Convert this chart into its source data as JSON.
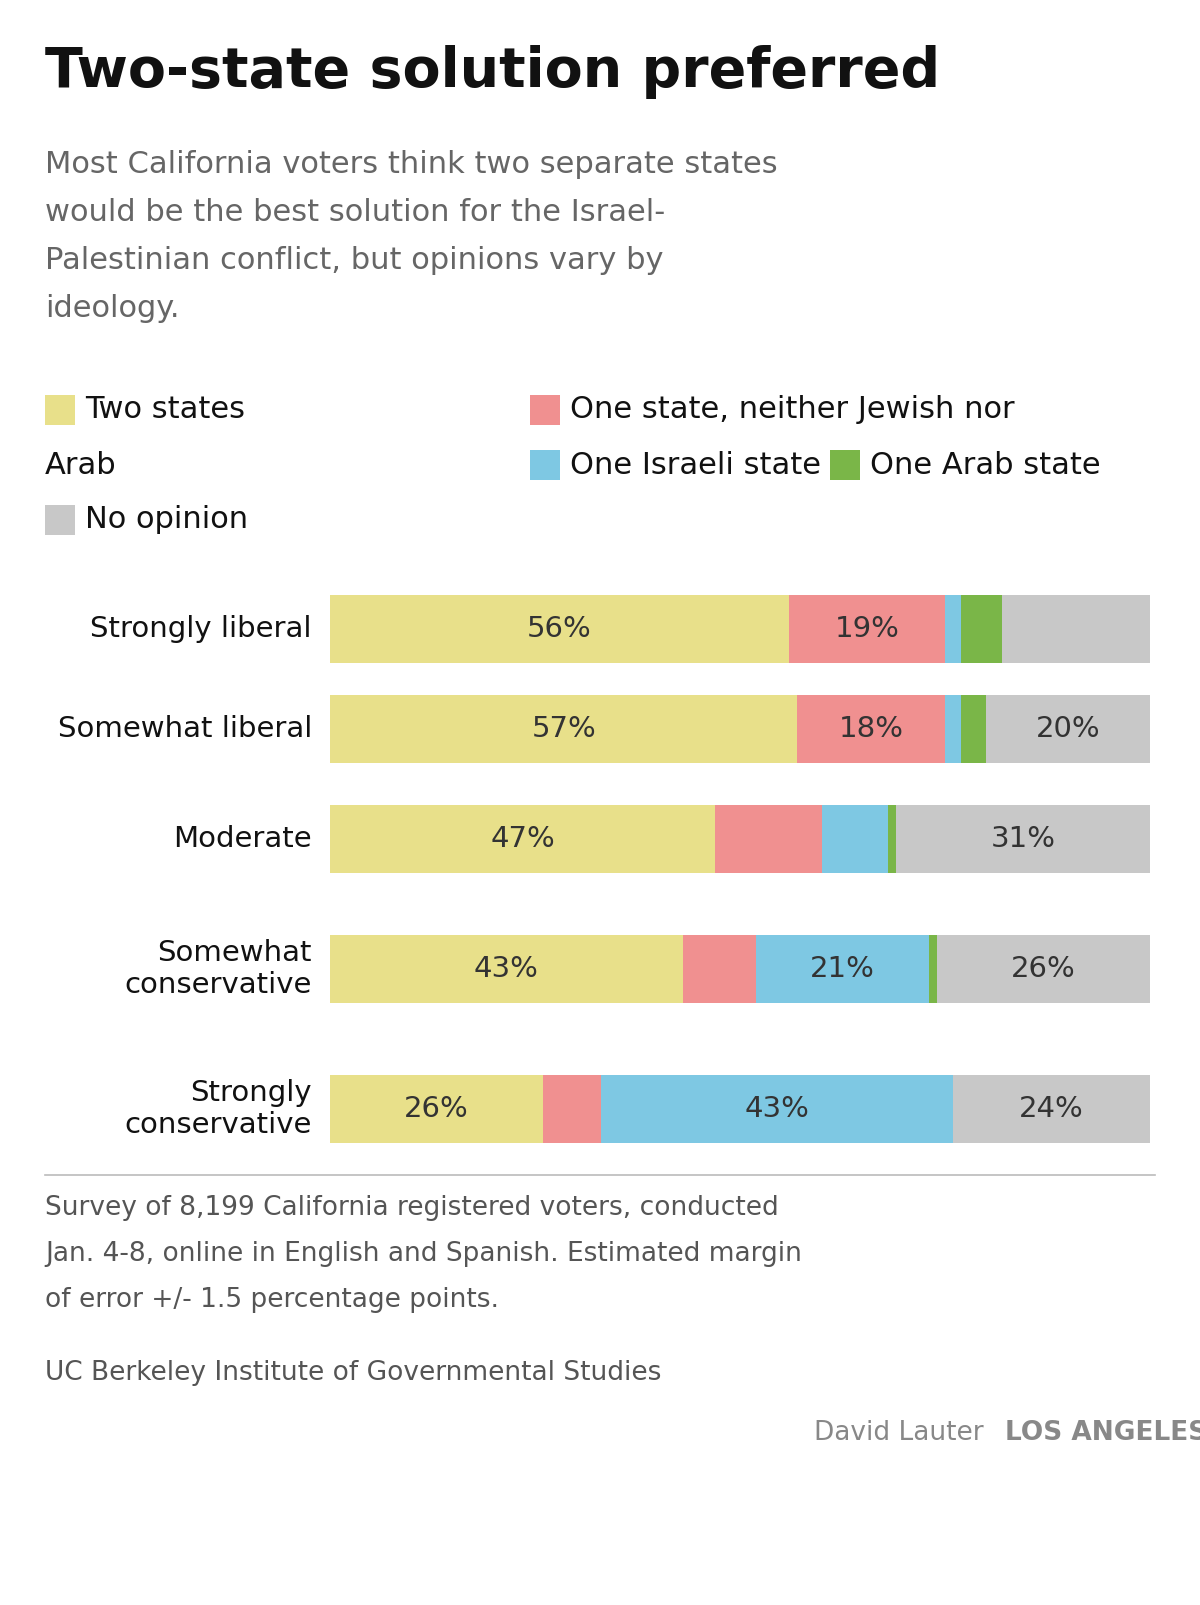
{
  "title": "Two-state solution preferred",
  "subtitle": "Most California voters think two separate states would be the best solution for the Israel-Palestinian conflict, but opinions vary by ideology.",
  "categories": [
    "Strongly liberal",
    "Somewhat liberal",
    "Moderate",
    "Somewhat\nconservative",
    "Strongly\nconservative"
  ],
  "segments": {
    "two_states": [
      56,
      57,
      47,
      43,
      26
    ],
    "neither": [
      19,
      18,
      13,
      9,
      7
    ],
    "israeli": [
      2,
      2,
      8,
      21,
      43
    ],
    "arab": [
      5,
      3,
      1,
      1,
      0
    ],
    "no_opinion": [
      18,
      20,
      31,
      26,
      24
    ]
  },
  "colors": {
    "two_states": "#e8e08a",
    "neither": "#f09090",
    "israeli": "#7ec8e3",
    "arab": "#7ab648",
    "no_opinion": "#c8c8c8"
  },
  "shown_pcts": {
    "two_states": [
      56,
      57,
      47,
      43,
      26
    ],
    "neither": [
      19,
      18,
      0,
      0,
      0
    ],
    "israeli": [
      0,
      0,
      0,
      21,
      43
    ],
    "arab": [
      0,
      0,
      0,
      0,
      0
    ],
    "no_opinion": [
      0,
      20,
      31,
      26,
      24
    ]
  },
  "footnote": "Survey of 8,199 California registered voters, conducted\nJan. 4-8, online in English and Spanish. Estimated margin\nof error +/- 1.5 percentage points.",
  "source1": "UC Berkeley Institute of Governmental Studies",
  "source2": "David Lauter",
  "source2b": "LOS ANGELES TIMES",
  "background_color": "#ffffff"
}
